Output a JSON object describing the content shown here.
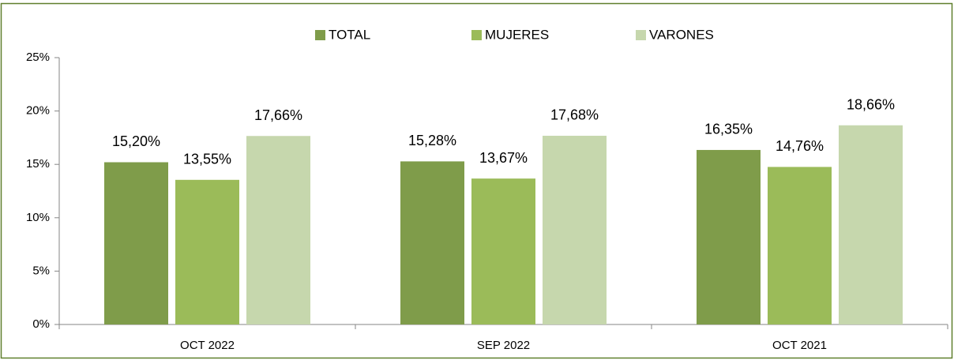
{
  "chart_data": {
    "type": "bar",
    "categories": [
      "OCT 2022",
      "SEP 2022",
      "OCT 2021"
    ],
    "series": [
      {
        "name": "TOTAL",
        "color": "#7f9c4a",
        "values": [
          15.2,
          15.28,
          16.35
        ],
        "value_labels": [
          "15,20%",
          "15,28%",
          "16,35%"
        ]
      },
      {
        "name": "MUJERES",
        "color": "#9bbb59",
        "values": [
          13.55,
          13.67,
          14.76
        ],
        "value_labels": [
          "13,55%",
          "13,67%",
          "14,76%"
        ]
      },
      {
        "name": "VARONES",
        "color": "#c6d7ad",
        "values": [
          17.66,
          17.68,
          18.66
        ],
        "value_labels": [
          "17,66%",
          "17,68%",
          "18,66%"
        ]
      }
    ],
    "ylim": [
      0,
      25
    ],
    "yticks": [
      {
        "value": 0,
        "label": "0%"
      },
      {
        "value": 5,
        "label": "5%"
      },
      {
        "value": 10,
        "label": "10%"
      },
      {
        "value": 15,
        "label": "15%"
      },
      {
        "value": 20,
        "label": "20%"
      },
      {
        "value": 25,
        "label": "25%"
      }
    ],
    "legend": "top",
    "grid": false
  }
}
